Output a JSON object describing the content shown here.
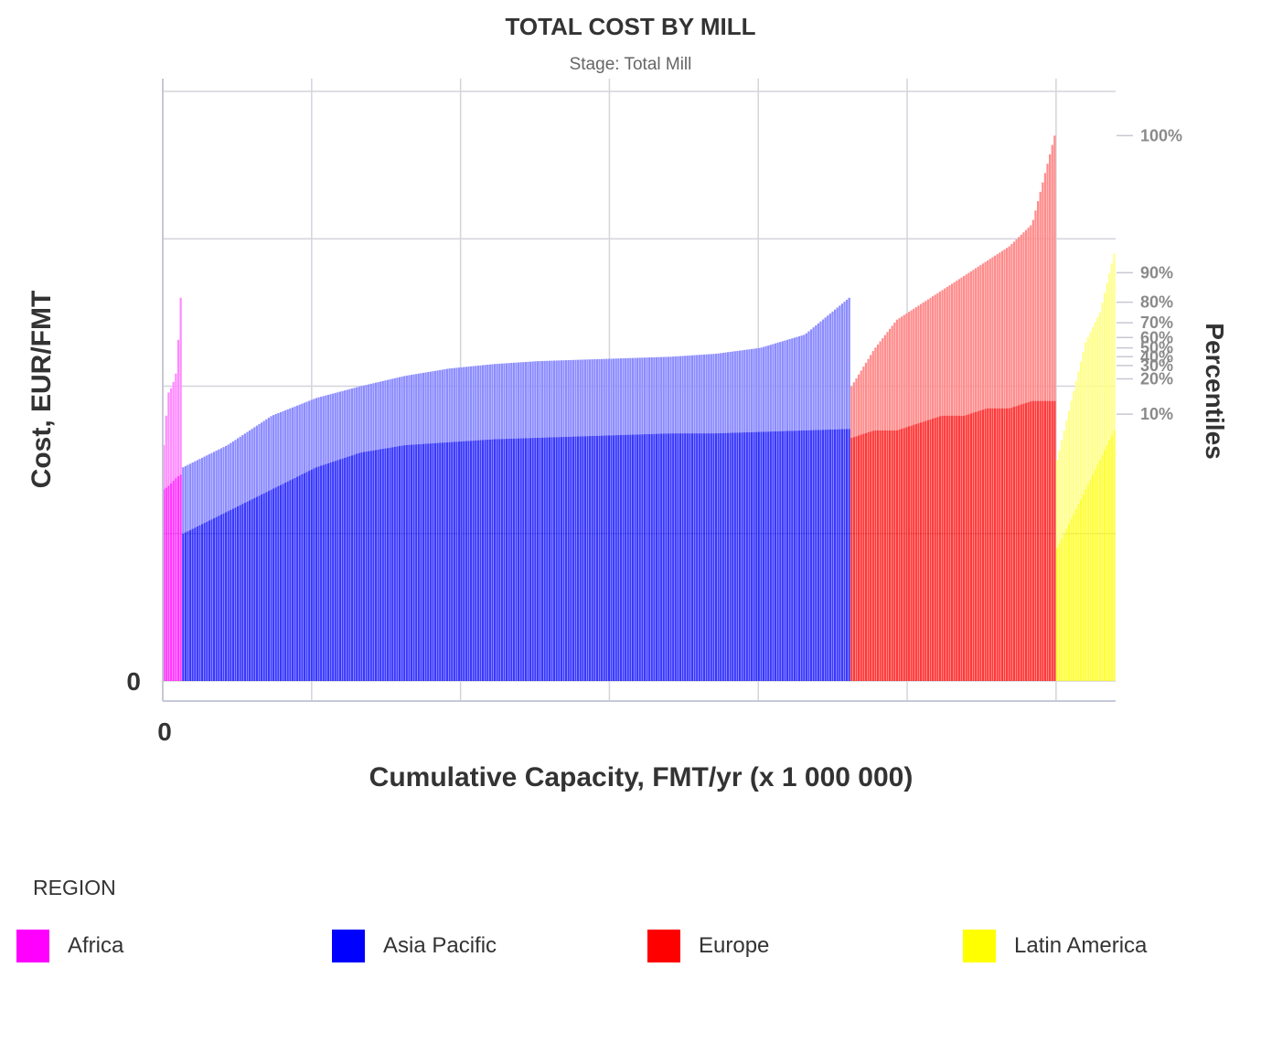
{
  "title": "TOTAL COST BY MILL",
  "subtitle": "Stage: Total Mill",
  "legend": {
    "title": "REGION",
    "items": [
      {
        "label": "Africa",
        "color": "#ff00ff"
      },
      {
        "label": "Asia Pacific",
        "color": "#0000ff"
      },
      {
        "label": "Europe",
        "color": "#ff0000"
      },
      {
        "label": "Latin America",
        "color": "#ffff00"
      }
    ]
  },
  "chart_data": {
    "type": "bar",
    "subtype": "cost-curve (variable-width stacked bars sorted by cost)",
    "title": "TOTAL COST BY MILL",
    "subtitle": "Stage: Total Mill",
    "xlabel": "Cumulative Capacity, FMT/yr (x 1 000 000)",
    "ylabel": "Cost, EUR/FMT",
    "ylabel_right": "Percentiles",
    "x_tick_labels": [
      "0"
    ],
    "y_tick_labels": [
      "0"
    ],
    "xlim": [
      0,
      6.4
    ],
    "ylim": [
      0,
      4.0
    ],
    "grid": true,
    "legend_position": "bottom",
    "percentile_tick_labels": [
      "100%",
      "90%",
      "80%",
      "70%",
      "60%",
      "50%",
      "40%",
      "30%",
      "20%",
      "10%"
    ],
    "percentile_tick_values": [
      3.7,
      2.77,
      2.57,
      2.43,
      2.33,
      2.26,
      2.2,
      2.14,
      2.05,
      1.81
    ],
    "series": [
      {
        "name": "Africa",
        "color": "#ff00ff",
        "x_start": 0.0,
        "x_end": 0.13,
        "base_cost": [
          1.3,
          1.32,
          1.35,
          1.38,
          1.4
        ],
        "total_cost": [
          1.6,
          1.95,
          2.0,
          2.1,
          2.6
        ]
      },
      {
        "name": "Asia Pacific",
        "color": "#0000ff",
        "x_start": 0.13,
        "x_end": 4.62,
        "base_cost": [
          1.0,
          1.15,
          1.3,
          1.45,
          1.55,
          1.6,
          1.62,
          1.64,
          1.65,
          1.66,
          1.67,
          1.68,
          1.68,
          1.69,
          1.7,
          1.71
        ],
        "total_cost": [
          1.45,
          1.6,
          1.8,
          1.92,
          2.0,
          2.07,
          2.12,
          2.15,
          2.17,
          2.18,
          2.19,
          2.2,
          2.22,
          2.26,
          2.35,
          2.6
        ]
      },
      {
        "name": "Europe",
        "color": "#ff0000",
        "x_start": 4.62,
        "x_end": 6.0,
        "base_cost": [
          1.65,
          1.7,
          1.7,
          1.75,
          1.8,
          1.8,
          1.85,
          1.85,
          1.9,
          1.9
        ],
        "total_cost": [
          2.0,
          2.25,
          2.45,
          2.55,
          2.65,
          2.75,
          2.85,
          2.95,
          3.1,
          3.7
        ]
      },
      {
        "name": "Latin America",
        "color": "#ffff00",
        "x_start": 6.0,
        "x_end": 6.4,
        "base_cost": [
          0.9,
          1.1,
          1.3,
          1.5,
          1.7
        ],
        "total_cost": [
          1.5,
          1.9,
          2.3,
          2.5,
          2.9
        ]
      }
    ]
  }
}
